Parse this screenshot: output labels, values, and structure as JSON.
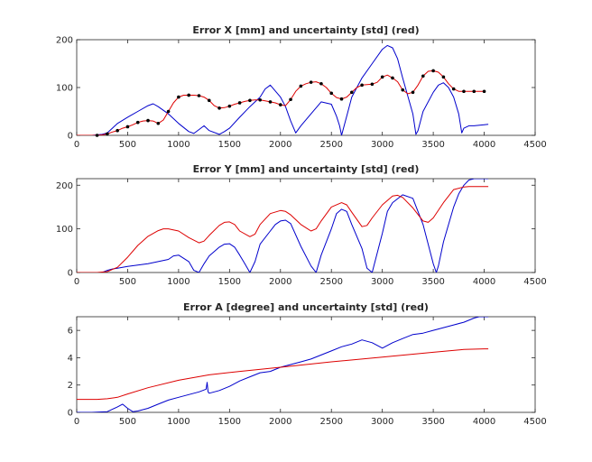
{
  "chart_data": [
    {
      "type": "line",
      "title": "Error X [mm] and uncertainty [std] (red)",
      "xlim": [
        0,
        4500
      ],
      "ylim": [
        0,
        200
      ],
      "xticks": [
        0,
        500,
        1000,
        1500,
        2000,
        2500,
        3000,
        3500,
        4000,
        4500
      ],
      "yticks": [
        0,
        100,
        200
      ],
      "series": [
        {
          "color": "#0000cc",
          "marker": "none",
          "x": [
            0,
            150,
            250,
            300,
            350,
            400,
            500,
            600,
            700,
            750,
            800,
            900,
            1000,
            1100,
            1150,
            1200,
            1250,
            1300,
            1400,
            1450,
            1500,
            1600,
            1700,
            1800,
            1850,
            1900,
            2000,
            2050,
            2100,
            2150,
            2200,
            2300,
            2400,
            2500,
            2550,
            2580,
            2600,
            2650,
            2700,
            2800,
            2900,
            3000,
            3050,
            3100,
            3150,
            3200,
            3300,
            3330,
            3350,
            3400,
            3500,
            3550,
            3600,
            3650,
            3700,
            3750,
            3780,
            3800,
            3850,
            3900,
            4000,
            4040
          ],
          "y": [
            0,
            0,
            2,
            5,
            15,
            25,
            38,
            50,
            62,
            66,
            60,
            45,
            25,
            8,
            4,
            12,
            20,
            10,
            2,
            8,
            15,
            38,
            60,
            80,
            97,
            105,
            80,
            60,
            30,
            5,
            20,
            45,
            70,
            65,
            40,
            20,
            0,
            40,
            80,
            120,
            150,
            180,
            188,
            183,
            160,
            120,
            45,
            2,
            10,
            50,
            90,
            105,
            110,
            100,
            80,
            45,
            5,
            15,
            20,
            20,
            22,
            23
          ]
        },
        {
          "color": "#dd0000",
          "marker": "dot",
          "x": [
            0,
            100,
            200,
            250,
            300,
            350,
            400,
            450,
            500,
            550,
            600,
            650,
            700,
            750,
            800,
            850,
            900,
            950,
            1000,
            1050,
            1100,
            1150,
            1200,
            1250,
            1300,
            1350,
            1400,
            1450,
            1500,
            1550,
            1600,
            1650,
            1700,
            1750,
            1800,
            1850,
            1900,
            1950,
            2000,
            2050,
            2100,
            2150,
            2200,
            2250,
            2300,
            2350,
            2400,
            2450,
            2500,
            2550,
            2600,
            2650,
            2700,
            2750,
            2800,
            2850,
            2900,
            2950,
            3000,
            3050,
            3100,
            3150,
            3200,
            3250,
            3300,
            3350,
            3400,
            3450,
            3500,
            3550,
            3600,
            3650,
            3700,
            3750,
            3800,
            3850,
            3900,
            3950,
            4000
          ],
          "y": [
            0,
            0,
            0,
            1,
            3,
            7,
            10,
            15,
            18,
            22,
            27,
            30,
            31,
            30,
            25,
            32,
            50,
            68,
            80,
            84,
            84,
            84,
            83,
            80,
            73,
            62,
            57,
            58,
            61,
            65,
            68,
            71,
            73,
            74,
            74,
            72,
            70,
            68,
            64,
            62,
            75,
            92,
            103,
            108,
            111,
            112,
            108,
            100,
            88,
            79,
            76,
            80,
            90,
            100,
            105,
            106,
            107,
            111,
            122,
            126,
            120,
            112,
            95,
            87,
            90,
            105,
            124,
            134,
            135,
            132,
            122,
            108,
            97,
            92,
            92,
            92,
            92,
            92,
            92
          ]
        }
      ]
    },
    {
      "type": "line",
      "title": "Error Y [mm] and uncertainty [std] (red)",
      "xlim": [
        0,
        4500
      ],
      "ylim": [
        0,
        215
      ],
      "xticks": [
        0,
        500,
        1000,
        1500,
        2000,
        2500,
        3000,
        3500,
        4000,
        4500
      ],
      "yticks": [
        0,
        100,
        200
      ],
      "series": [
        {
          "color": "#0000cc",
          "x": [
            0,
            250,
            300,
            350,
            400,
            500,
            600,
            700,
            800,
            900,
            950,
            1000,
            1100,
            1150,
            1200,
            1250,
            1300,
            1400,
            1450,
            1500,
            1550,
            1600,
            1650,
            1700,
            1750,
            1800,
            1900,
            1950,
            2000,
            2050,
            2100,
            2200,
            2300,
            2350,
            2400,
            2500,
            2550,
            2600,
            2650,
            2700,
            2800,
            2850,
            2900,
            3000,
            3050,
            3100,
            3200,
            3300,
            3400,
            3500,
            3530,
            3550,
            3600,
            3700,
            3750,
            3800,
            3850,
            3900,
            4000,
            4040
          ],
          "y": [
            0,
            0,
            5,
            8,
            10,
            14,
            17,
            20,
            25,
            30,
            38,
            40,
            25,
            5,
            0,
            20,
            38,
            58,
            65,
            66,
            58,
            40,
            20,
            0,
            25,
            65,
            95,
            110,
            118,
            120,
            112,
            60,
            15,
            0,
            40,
            100,
            135,
            145,
            140,
            110,
            55,
            10,
            0,
            90,
            140,
            160,
            178,
            170,
            110,
            20,
            0,
            15,
            70,
            150,
            180,
            200,
            212,
            215,
            215,
            215
          ]
        },
        {
          "color": "#dd0000",
          "x": [
            0,
            200,
            300,
            400,
            500,
            600,
            700,
            800,
            850,
            900,
            1000,
            1100,
            1200,
            1250,
            1300,
            1400,
            1450,
            1500,
            1550,
            1600,
            1700,
            1750,
            1800,
            1900,
            2000,
            2050,
            2100,
            2200,
            2300,
            2350,
            2400,
            2500,
            2600,
            2650,
            2700,
            2800,
            2850,
            2900,
            3000,
            3100,
            3150,
            3200,
            3300,
            3400,
            3450,
            3500,
            3600,
            3700,
            3800,
            3850,
            4000,
            4040
          ],
          "y": [
            0,
            0,
            2,
            12,
            35,
            62,
            83,
            96,
            100,
            100,
            95,
            80,
            68,
            72,
            85,
            108,
            115,
            116,
            110,
            95,
            82,
            88,
            110,
            135,
            142,
            140,
            132,
            110,
            95,
            100,
            118,
            150,
            160,
            155,
            138,
            105,
            108,
            125,
            155,
            175,
            177,
            172,
            148,
            118,
            115,
            125,
            160,
            190,
            196,
            197,
            197,
            197
          ]
        }
      ]
    },
    {
      "type": "line",
      "title": "Error A [degree] and uncertainty [std] (red)",
      "xlim": [
        0,
        4500
      ],
      "ylim": [
        0,
        7
      ],
      "xticks": [
        0,
        500,
        1000,
        1500,
        2000,
        2500,
        3000,
        3500,
        4000,
        4500
      ],
      "yticks": [
        0,
        2,
        4,
        6
      ],
      "series": [
        {
          "color": "#0000cc",
          "x": [
            0,
            150,
            300,
            400,
            450,
            500,
            550,
            600,
            700,
            800,
            900,
            1000,
            1100,
            1200,
            1270,
            1280,
            1290,
            1300,
            1350,
            1400,
            1500,
            1600,
            1700,
            1800,
            1900,
            2000,
            2100,
            2200,
            2300,
            2400,
            2500,
            2600,
            2700,
            2800,
            2900,
            3000,
            3100,
            3200,
            3300,
            3400,
            3500,
            3600,
            3700,
            3800,
            3900,
            3950,
            4000,
            4040
          ],
          "y": [
            0,
            0,
            0.05,
            0.4,
            0.6,
            0.3,
            0.05,
            0.1,
            0.3,
            0.6,
            0.9,
            1.1,
            1.3,
            1.5,
            1.7,
            2.2,
            1.5,
            1.4,
            1.5,
            1.6,
            1.9,
            2.3,
            2.6,
            2.9,
            3.0,
            3.3,
            3.5,
            3.7,
            3.9,
            4.2,
            4.5,
            4.8,
            5.0,
            5.3,
            5.1,
            4.7,
            5.1,
            5.4,
            5.7,
            5.8,
            6.0,
            6.2,
            6.4,
            6.6,
            6.9,
            7.0,
            7.0,
            7.0
          ]
        },
        {
          "color": "#dd0000",
          "x": [
            0,
            200,
            300,
            400,
            500,
            700,
            1000,
            1300,
            1600,
            2000,
            2500,
            3000,
            3500,
            3800,
            4000,
            4040
          ],
          "y": [
            0.95,
            0.95,
            1.0,
            1.1,
            1.35,
            1.8,
            2.35,
            2.75,
            3.0,
            3.3,
            3.7,
            4.05,
            4.4,
            4.6,
            4.65,
            4.65
          ]
        }
      ]
    }
  ]
}
